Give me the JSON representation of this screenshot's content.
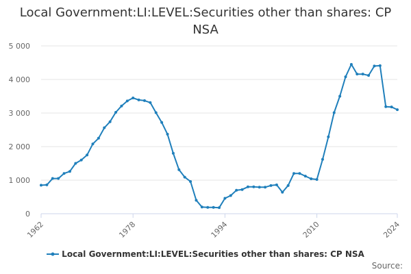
{
  "chart_data": {
    "type": "line",
    "title": "Local Government:LI:LEVEL:Securities other than shares: CP NSA",
    "xlabel": "",
    "ylabel": "",
    "xlim": [
      1962,
      2024
    ],
    "ylim": [
      0,
      5000
    ],
    "x_ticks": [
      1962,
      1978,
      1994,
      2010,
      2024
    ],
    "y_ticks": [
      0,
      1000,
      2000,
      3000,
      4000,
      5000
    ],
    "y_tick_labels": [
      "0",
      "1 000",
      "2 000",
      "3 000",
      "4 000",
      "5 000"
    ],
    "grid": "horizontal",
    "legend": "bottom",
    "colors": {
      "series": "#1f7fbb",
      "grid": "#e6e6e6",
      "axis": "#ccd6eb"
    },
    "series": [
      {
        "name": "Local Government:LI:LEVEL:Securities other than shares: CP NSA",
        "x": [
          1962,
          1963,
          1964,
          1965,
          1966,
          1967,
          1968,
          1969,
          1970,
          1971,
          1972,
          1973,
          1974,
          1975,
          1976,
          1977,
          1978,
          1979,
          1980,
          1981,
          1982,
          1983,
          1984,
          1985,
          1986,
          1987,
          1988,
          1989,
          1990,
          1991,
          1992,
          1993,
          1994,
          1995,
          1996,
          1997,
          1998,
          1999,
          2000,
          2001,
          2002,
          2003,
          2004,
          2005,
          2006,
          2007,
          2008,
          2009,
          2010,
          2011,
          2012,
          2013,
          2014,
          2015,
          2016,
          2017,
          2018,
          2019,
          2020,
          2021,
          2022,
          2023,
          2024
        ],
        "values": [
          850,
          860,
          1050,
          1050,
          1200,
          1260,
          1500,
          1600,
          1750,
          2080,
          2250,
          2560,
          2740,
          3020,
          3210,
          3360,
          3450,
          3390,
          3370,
          3310,
          3010,
          2720,
          2370,
          1800,
          1310,
          1090,
          960,
          400,
          200,
          190,
          190,
          180,
          460,
          540,
          700,
          720,
          800,
          800,
          790,
          790,
          840,
          860,
          640,
          840,
          1200,
          1200,
          1120,
          1040,
          1020,
          1620,
          2290,
          3010,
          3500,
          4080,
          4450,
          4160,
          4160,
          4120,
          4400,
          4410,
          3190,
          3180,
          3100
        ]
      }
    ]
  },
  "source_label": "Source:"
}
